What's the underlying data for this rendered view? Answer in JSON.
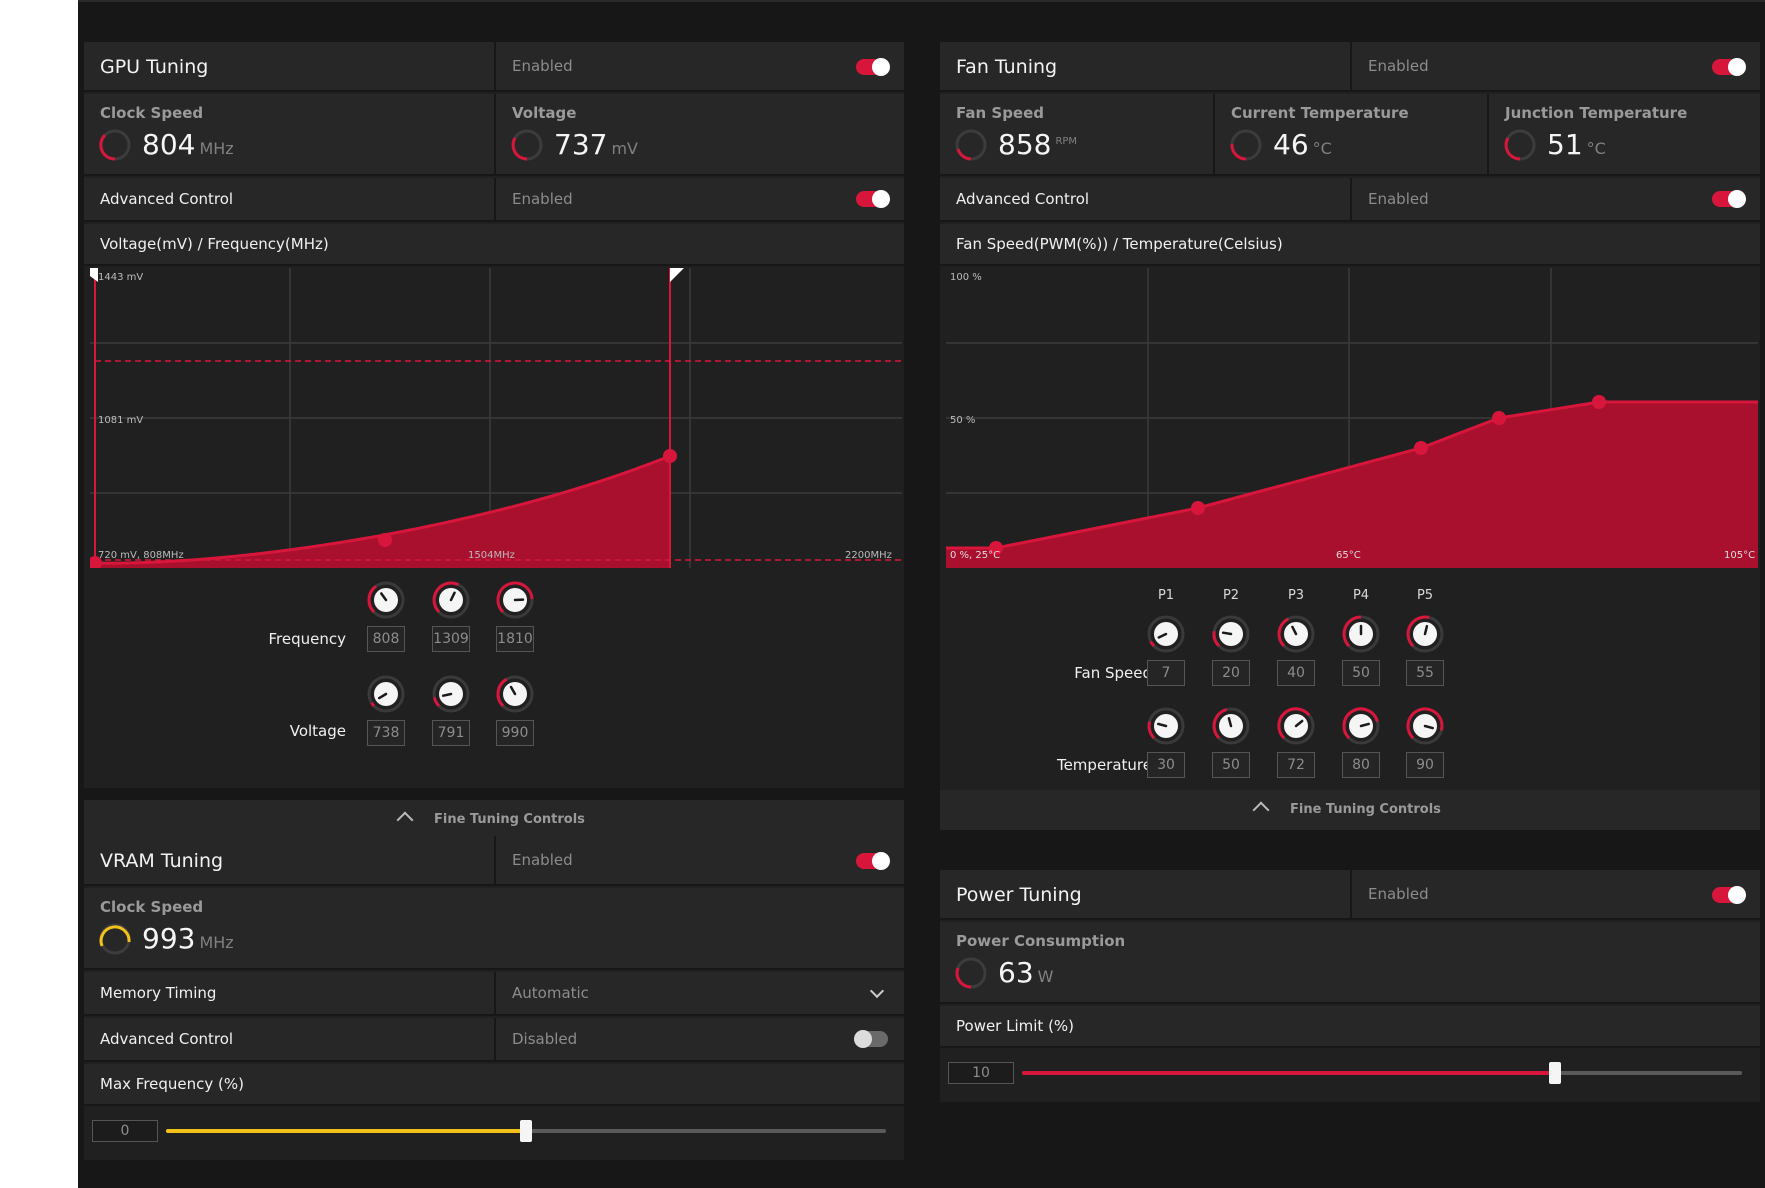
{
  "colors": {
    "accent": "#d8163b",
    "vram_accent": "#f2c21b",
    "bg": "#171717",
    "panel": "#202020",
    "row": "#272727"
  },
  "gpu": {
    "title": "GPU Tuning",
    "status": "Enabled",
    "toggle_on": true,
    "clock": {
      "label": "Clock Speed",
      "value": "804",
      "unit": "MHz",
      "level": 0.3
    },
    "voltage": {
      "label": "Voltage",
      "value": "737",
      "unit": "mV",
      "level": 0.35
    },
    "advanced": {
      "label": "Advanced Control",
      "status": "Enabled",
      "toggle_on": true
    },
    "chart_title": "Voltage(mV) / Frequency(MHz)",
    "chart_labels": {
      "top": "1443 mV",
      "mid": "1081 mV",
      "bottom": "720 mV, 808MHz",
      "xmid": "1504MHz",
      "xmax": "2200MHz"
    },
    "frequency_label": "Frequency",
    "voltage_label": "Voltage",
    "frequency_values": [
      "808",
      "1309",
      "1810"
    ],
    "voltage_values": [
      "738",
      "791",
      "990"
    ],
    "fine_tuning": "Fine Tuning Controls"
  },
  "fan": {
    "title": "Fan Tuning",
    "status": "Enabled",
    "toggle_on": true,
    "speed": {
      "label": "Fan Speed",
      "value": "858",
      "unit": "RPM",
      "level": 0.2
    },
    "current_temp": {
      "label": "Current Temperature",
      "value": "46",
      "unit": "°C",
      "level": 0.25
    },
    "junction_temp": {
      "label": "Junction Temperature",
      "value": "51",
      "unit": "°C",
      "level": 0.3
    },
    "advanced": {
      "label": "Advanced Control",
      "status": "Enabled",
      "toggle_on": true
    },
    "chart_title": "Fan Speed(PWM(%)) / Temperature(Celsius)",
    "chart_labels": {
      "top": "100 %",
      "mid": "50 %",
      "bottom": "0 %, 25°C",
      "xmid": "65°C",
      "xmax": "105°C"
    },
    "points": [
      "P1",
      "P2",
      "P3",
      "P4",
      "P5"
    ],
    "fan_speed_label": "Fan Speed",
    "temperature_label": "Temperature",
    "fan_speed_values": [
      "7",
      "20",
      "40",
      "50",
      "55"
    ],
    "temperature_values": [
      "30",
      "50",
      "72",
      "80",
      "90"
    ],
    "fine_tuning": "Fine Tuning Controls"
  },
  "vram": {
    "title": "VRAM Tuning",
    "status": "Enabled",
    "toggle_on": true,
    "clock": {
      "label": "Clock Speed",
      "value": "993",
      "unit": "MHz",
      "level": 0.4
    },
    "memory_timing": {
      "label": "Memory Timing",
      "value": "Automatic"
    },
    "advanced": {
      "label": "Advanced Control",
      "status": "Disabled",
      "toggle_on": false
    },
    "max_freq_label": "Max Frequency (%)",
    "max_freq_value": "0",
    "max_freq_slider": 0.5
  },
  "power": {
    "title": "Power Tuning",
    "status": "Enabled",
    "toggle_on": true,
    "consumption": {
      "label": "Power Consumption",
      "value": "63",
      "unit": "W",
      "level": 0.25
    },
    "limit_label": "Power Limit (%)",
    "limit_value": "10",
    "limit_slider": 0.74
  }
}
